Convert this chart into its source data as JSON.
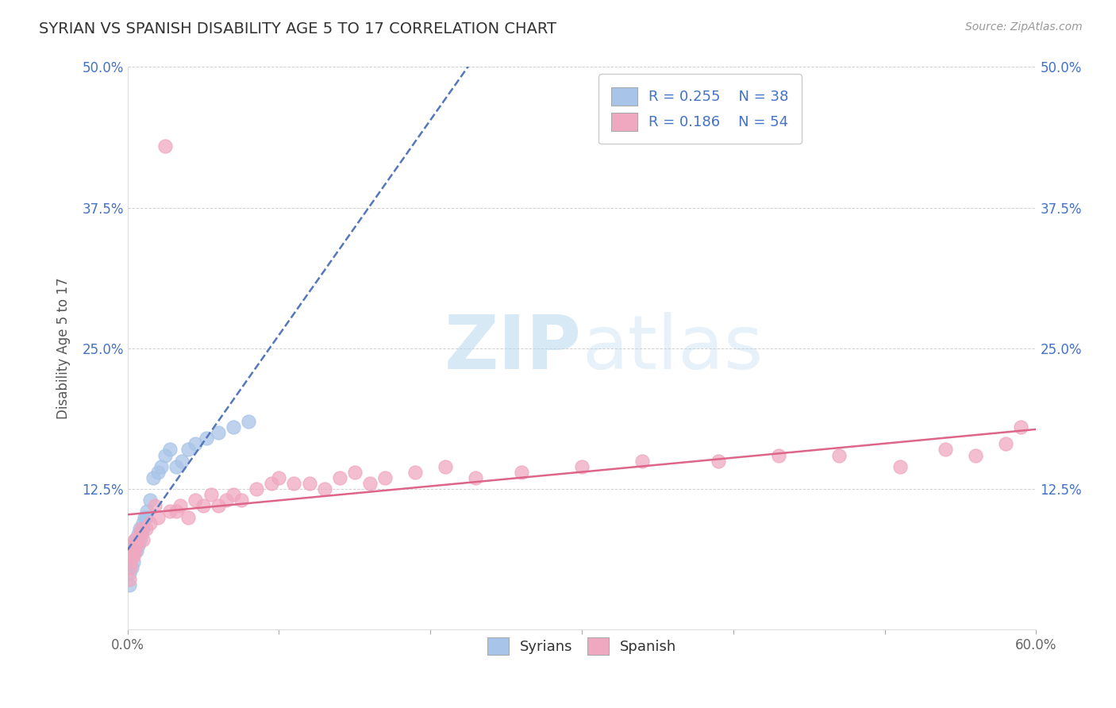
{
  "title": "SYRIAN VS SPANISH DISABILITY AGE 5 TO 17 CORRELATION CHART",
  "source": "Source: ZipAtlas.com",
  "ylabel": "Disability Age 5 to 17",
  "xlim": [
    0.0,
    0.6
  ],
  "ylim": [
    0.0,
    0.5
  ],
  "xtick_positions": [
    0.0,
    0.1,
    0.2,
    0.3,
    0.4,
    0.5,
    0.6
  ],
  "xtick_labels": [
    "0.0%",
    "",
    "",
    "",
    "",
    "",
    "60.0%"
  ],
  "ytick_positions": [
    0.0,
    0.125,
    0.25,
    0.375,
    0.5
  ],
  "ytick_labels": [
    "",
    "12.5%",
    "25.0%",
    "37.5%",
    "50.0%"
  ],
  "r_syrians": 0.255,
  "n_syrians": 38,
  "r_spanish": 0.186,
  "n_spanish": 54,
  "syrians_color": "#a8c4e8",
  "spanish_color": "#f0a8c0",
  "trendline_syrians_color": "#5577bb",
  "trendline_spanish_color": "#dd6688",
  "watermark": "ZIPatlas",
  "syrians_x": [
    0.001,
    0.001,
    0.002,
    0.002,
    0.002,
    0.003,
    0.003,
    0.003,
    0.004,
    0.004,
    0.005,
    0.005,
    0.006,
    0.006,
    0.007,
    0.007,
    0.008,
    0.008,
    0.009,
    0.01,
    0.01,
    0.011,
    0.012,
    0.013,
    0.015,
    0.017,
    0.02,
    0.022,
    0.025,
    0.028,
    0.032,
    0.036,
    0.04,
    0.045,
    0.052,
    0.06,
    0.07,
    0.08
  ],
  "syrians_y": [
    0.04,
    0.05,
    0.06,
    0.065,
    0.07,
    0.055,
    0.065,
    0.075,
    0.06,
    0.07,
    0.075,
    0.08,
    0.07,
    0.08,
    0.075,
    0.085,
    0.08,
    0.09,
    0.085,
    0.09,
    0.095,
    0.1,
    0.1,
    0.105,
    0.115,
    0.135,
    0.14,
    0.145,
    0.155,
    0.16,
    0.145,
    0.15,
    0.16,
    0.165,
    0.17,
    0.175,
    0.18,
    0.185
  ],
  "spanish_x": [
    0.001,
    0.002,
    0.002,
    0.003,
    0.003,
    0.004,
    0.004,
    0.005,
    0.005,
    0.006,
    0.007,
    0.008,
    0.009,
    0.01,
    0.012,
    0.015,
    0.018,
    0.02,
    0.025,
    0.028,
    0.032,
    0.035,
    0.04,
    0.045,
    0.05,
    0.055,
    0.06,
    0.065,
    0.07,
    0.075,
    0.085,
    0.095,
    0.1,
    0.11,
    0.12,
    0.13,
    0.14,
    0.15,
    0.16,
    0.17,
    0.19,
    0.21,
    0.23,
    0.26,
    0.3,
    0.34,
    0.39,
    0.43,
    0.47,
    0.51,
    0.54,
    0.56,
    0.58,
    0.59
  ],
  "spanish_y": [
    0.045,
    0.055,
    0.06,
    0.065,
    0.07,
    0.065,
    0.075,
    0.07,
    0.08,
    0.075,
    0.08,
    0.085,
    0.09,
    0.08,
    0.09,
    0.095,
    0.11,
    0.1,
    0.43,
    0.105,
    0.105,
    0.11,
    0.1,
    0.115,
    0.11,
    0.12,
    0.11,
    0.115,
    0.12,
    0.115,
    0.125,
    0.13,
    0.135,
    0.13,
    0.13,
    0.125,
    0.135,
    0.14,
    0.13,
    0.135,
    0.14,
    0.145,
    0.135,
    0.14,
    0.145,
    0.15,
    0.15,
    0.155,
    0.155,
    0.145,
    0.16,
    0.155,
    0.165,
    0.18
  ]
}
